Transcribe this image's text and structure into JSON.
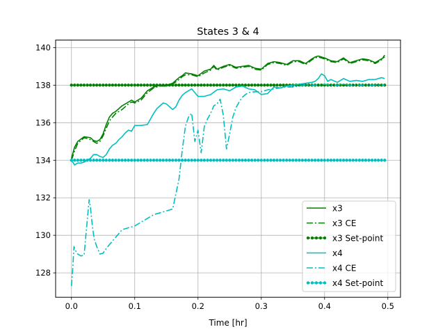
{
  "chart_data": {
    "type": "line",
    "title": "States 3 & 4",
    "xlabel": "Time [hr]",
    "ylabel": "",
    "xlim": [
      -0.025,
      0.52
    ],
    "ylim": [
      126.7,
      140.4
    ],
    "grid": true,
    "legend_position": "lower-right",
    "xticks": [
      0.0,
      0.1,
      0.2,
      0.3,
      0.4,
      0.5
    ],
    "xtick_labels": [
      "0.0",
      "0.1",
      "0.2",
      "0.3",
      "0.4",
      "0.5"
    ],
    "yticks": [
      128,
      130,
      132,
      134,
      136,
      138,
      140
    ],
    "ytick_labels": [
      "128",
      "130",
      "132",
      "134",
      "136",
      "138",
      "140"
    ],
    "series": [
      {
        "name": "x3",
        "color": "#008000",
        "style": "solid",
        "marker": "none",
        "x": [
          0.0,
          0.005,
          0.01,
          0.02,
          0.03,
          0.035,
          0.04,
          0.045,
          0.05,
          0.055,
          0.06,
          0.065,
          0.07,
          0.08,
          0.09,
          0.095,
          0.1,
          0.11,
          0.115,
          0.12,
          0.13,
          0.14,
          0.15,
          0.16,
          0.17,
          0.175,
          0.18,
          0.19,
          0.2,
          0.21,
          0.22,
          0.225,
          0.23,
          0.24,
          0.25,
          0.26,
          0.27,
          0.28,
          0.29,
          0.3,
          0.31,
          0.32,
          0.33,
          0.34,
          0.35,
          0.36,
          0.37,
          0.38,
          0.385,
          0.39,
          0.4,
          0.41,
          0.42,
          0.43,
          0.44,
          0.45,
          0.46,
          0.47,
          0.48,
          0.49,
          0.495
        ],
        "y": [
          134.1,
          134.7,
          135.0,
          135.25,
          135.2,
          135.05,
          135.0,
          135.1,
          135.4,
          135.9,
          136.3,
          136.5,
          136.6,
          136.9,
          137.1,
          137.2,
          137.1,
          137.3,
          137.5,
          137.7,
          137.9,
          138.0,
          138.0,
          138.1,
          138.4,
          138.5,
          138.65,
          138.6,
          138.5,
          138.75,
          138.85,
          139.05,
          138.85,
          139.0,
          139.1,
          138.95,
          139.0,
          139.05,
          138.9,
          138.85,
          139.15,
          139.25,
          139.2,
          139.1,
          139.3,
          139.3,
          139.15,
          139.4,
          139.5,
          139.55,
          139.45,
          139.3,
          139.25,
          139.45,
          139.2,
          139.3,
          139.4,
          139.35,
          139.2,
          139.4,
          139.5
        ]
      },
      {
        "name": "x3 CE",
        "color": "#008000",
        "style": "dashdot",
        "marker": "none",
        "x": [
          0.0,
          0.005,
          0.01,
          0.02,
          0.03,
          0.035,
          0.04,
          0.045,
          0.05,
          0.055,
          0.06,
          0.07,
          0.08,
          0.09,
          0.095,
          0.1,
          0.11,
          0.115,
          0.12,
          0.13,
          0.14,
          0.15,
          0.16,
          0.17,
          0.175,
          0.18,
          0.19,
          0.2,
          0.21,
          0.22,
          0.225,
          0.23,
          0.24,
          0.25,
          0.26,
          0.27,
          0.28,
          0.29,
          0.3,
          0.31,
          0.32,
          0.33,
          0.34,
          0.35,
          0.36,
          0.37,
          0.38,
          0.385,
          0.39,
          0.4,
          0.41,
          0.42,
          0.43,
          0.44,
          0.45,
          0.46,
          0.47,
          0.48,
          0.49,
          0.495
        ],
        "y": [
          134.0,
          134.5,
          134.9,
          135.2,
          135.1,
          135.0,
          134.9,
          135.0,
          135.3,
          135.7,
          136.1,
          136.5,
          136.7,
          137.0,
          137.1,
          137.05,
          137.2,
          137.4,
          137.6,
          137.85,
          137.95,
          137.95,
          138.05,
          138.3,
          138.45,
          138.55,
          138.55,
          138.45,
          138.65,
          138.8,
          139.0,
          138.8,
          138.95,
          139.05,
          138.9,
          138.95,
          139.0,
          138.85,
          138.8,
          139.1,
          139.2,
          139.15,
          139.05,
          139.25,
          139.25,
          139.1,
          139.35,
          139.45,
          139.5,
          139.4,
          139.25,
          139.2,
          139.4,
          139.15,
          139.25,
          139.35,
          139.3,
          139.15,
          139.35,
          139.6
        ]
      },
      {
        "name": "x3 Set-point",
        "color": "#008000",
        "style": "dashed",
        "marker": "dot",
        "x": [
          0.0,
          0.005,
          0.01,
          0.015,
          0.02,
          0.025,
          0.03,
          0.035,
          0.04,
          0.045,
          0.05,
          0.055,
          0.06,
          0.065,
          0.07,
          0.075,
          0.08,
          0.085,
          0.09,
          0.095,
          0.1,
          0.105,
          0.11,
          0.115,
          0.12,
          0.125,
          0.13,
          0.135,
          0.14,
          0.145,
          0.15,
          0.155,
          0.16,
          0.165,
          0.17,
          0.175,
          0.18,
          0.185,
          0.19,
          0.195,
          0.2,
          0.205,
          0.21,
          0.215,
          0.22,
          0.225,
          0.23,
          0.235,
          0.24,
          0.245,
          0.25,
          0.255,
          0.26,
          0.265,
          0.27,
          0.275,
          0.28,
          0.285,
          0.29,
          0.295,
          0.3,
          0.305,
          0.31,
          0.315,
          0.32,
          0.325,
          0.33,
          0.335,
          0.34,
          0.345,
          0.35,
          0.355,
          0.36,
          0.365,
          0.37,
          0.375,
          0.38,
          0.385,
          0.39,
          0.395,
          0.4,
          0.405,
          0.41,
          0.415,
          0.42,
          0.425,
          0.43,
          0.435,
          0.44,
          0.445,
          0.45,
          0.455,
          0.46,
          0.465,
          0.47,
          0.475,
          0.48,
          0.485,
          0.49,
          0.495
        ],
        "y": [
          138,
          138,
          138,
          138,
          138,
          138,
          138,
          138,
          138,
          138,
          138,
          138,
          138,
          138,
          138,
          138,
          138,
          138,
          138,
          138,
          138,
          138,
          138,
          138,
          138,
          138,
          138,
          138,
          138,
          138,
          138,
          138,
          138,
          138,
          138,
          138,
          138,
          138,
          138,
          138,
          138,
          138,
          138,
          138,
          138,
          138,
          138,
          138,
          138,
          138,
          138,
          138,
          138,
          138,
          138,
          138,
          138,
          138,
          138,
          138,
          138,
          138,
          138,
          138,
          138,
          138,
          138,
          138,
          138,
          138,
          138,
          138,
          138,
          138,
          138,
          138,
          138,
          138,
          138,
          138,
          138,
          138,
          138,
          138,
          138,
          138,
          138,
          138,
          138,
          138,
          138,
          138,
          138,
          138,
          138,
          138,
          138,
          138,
          138,
          138
        ]
      },
      {
        "name": "x4",
        "color": "#00bfbf",
        "style": "solid",
        "marker": "none",
        "x": [
          0.0,
          0.005,
          0.01,
          0.015,
          0.02,
          0.025,
          0.03,
          0.035,
          0.04,
          0.045,
          0.05,
          0.055,
          0.06,
          0.065,
          0.07,
          0.075,
          0.08,
          0.085,
          0.09,
          0.095,
          0.1,
          0.11,
          0.12,
          0.125,
          0.13,
          0.135,
          0.14,
          0.145,
          0.15,
          0.155,
          0.16,
          0.165,
          0.17,
          0.175,
          0.18,
          0.185,
          0.19,
          0.2,
          0.21,
          0.22,
          0.23,
          0.24,
          0.25,
          0.26,
          0.27,
          0.28,
          0.29,
          0.3,
          0.31,
          0.32,
          0.33,
          0.34,
          0.35,
          0.36,
          0.37,
          0.38,
          0.385,
          0.39,
          0.395,
          0.4,
          0.405,
          0.41,
          0.42,
          0.43,
          0.44,
          0.45,
          0.46,
          0.47,
          0.48,
          0.49,
          0.495
        ],
        "y": [
          134.0,
          133.75,
          133.85,
          133.85,
          133.9,
          134.0,
          134.1,
          134.3,
          134.3,
          134.2,
          134.15,
          134.3,
          134.6,
          134.8,
          134.9,
          135.1,
          135.25,
          135.45,
          135.6,
          135.55,
          135.85,
          135.85,
          135.9,
          136.2,
          136.5,
          136.75,
          136.9,
          137.05,
          137.0,
          136.85,
          136.7,
          136.85,
          137.2,
          137.45,
          137.6,
          137.7,
          137.8,
          137.4,
          137.4,
          137.5,
          137.75,
          137.8,
          137.7,
          137.9,
          137.95,
          137.8,
          137.75,
          137.5,
          137.55,
          137.9,
          137.85,
          137.95,
          138.0,
          138.05,
          138.1,
          138.15,
          138.2,
          138.35,
          138.6,
          138.5,
          138.2,
          138.3,
          138.15,
          138.35,
          138.2,
          138.25,
          138.2,
          138.3,
          138.3,
          138.4,
          138.35
        ]
      },
      {
        "name": "x4 CE",
        "color": "#00bfbf",
        "style": "dashdot",
        "marker": "none",
        "x": [
          0.0,
          0.002,
          0.004,
          0.006,
          0.01,
          0.015,
          0.02,
          0.025,
          0.028,
          0.03,
          0.033,
          0.036,
          0.04,
          0.045,
          0.05,
          0.055,
          0.06,
          0.07,
          0.08,
          0.09,
          0.1,
          0.11,
          0.12,
          0.13,
          0.14,
          0.15,
          0.16,
          0.17,
          0.175,
          0.18,
          0.185,
          0.19,
          0.195,
          0.2,
          0.205,
          0.21,
          0.215,
          0.22,
          0.225,
          0.23,
          0.235,
          0.24,
          0.245,
          0.25,
          0.255,
          0.26,
          0.265,
          0.27,
          0.275,
          0.28,
          0.29,
          0.3,
          0.31,
          0.32,
          0.33,
          0.34,
          0.35,
          0.36,
          0.37,
          0.38,
          0.39,
          0.4,
          0.41,
          0.42,
          0.43,
          0.44,
          0.45,
          0.46,
          0.47,
          0.48,
          0.49,
          0.495
        ],
        "y": [
          127.3,
          128.2,
          129.4,
          129.2,
          129.0,
          128.9,
          128.95,
          130.8,
          131.9,
          131.5,
          130.5,
          129.8,
          129.4,
          129.0,
          129.05,
          129.3,
          129.5,
          129.9,
          130.3,
          130.4,
          130.5,
          130.7,
          130.9,
          131.1,
          131.2,
          131.3,
          131.4,
          133.0,
          134.5,
          135.8,
          136.3,
          136.5,
          135.0,
          135.6,
          134.4,
          135.8,
          136.2,
          136.5,
          136.9,
          137.0,
          137.25,
          136.4,
          134.6,
          135.4,
          136.3,
          136.8,
          137.1,
          137.35,
          137.5,
          137.6,
          137.65,
          137.65,
          137.75,
          137.8,
          137.85,
          137.9,
          137.9,
          137.95,
          138.0,
          138.0,
          138.0,
          138.05,
          138.0,
          138.0,
          138.05,
          138.0,
          138.0,
          138.0,
          138.0,
          138.0,
          138.0,
          138.0
        ]
      },
      {
        "name": "x4 Set-point",
        "color": "#00bfbf",
        "style": "dashed",
        "marker": "dot",
        "x": [
          0.0,
          0.005,
          0.01,
          0.015,
          0.02,
          0.025,
          0.03,
          0.035,
          0.04,
          0.045,
          0.05,
          0.055,
          0.06,
          0.065,
          0.07,
          0.075,
          0.08,
          0.085,
          0.09,
          0.095,
          0.1,
          0.105,
          0.11,
          0.115,
          0.12,
          0.125,
          0.13,
          0.135,
          0.14,
          0.145,
          0.15,
          0.155,
          0.16,
          0.165,
          0.17,
          0.175,
          0.18,
          0.185,
          0.19,
          0.195,
          0.2,
          0.205,
          0.21,
          0.215,
          0.22,
          0.225,
          0.23,
          0.235,
          0.24,
          0.245,
          0.25,
          0.255,
          0.26,
          0.265,
          0.27,
          0.275,
          0.28,
          0.285,
          0.29,
          0.295,
          0.3,
          0.305,
          0.31,
          0.315,
          0.32,
          0.325,
          0.33,
          0.335,
          0.34,
          0.345,
          0.35,
          0.355,
          0.36,
          0.365,
          0.37,
          0.375,
          0.38,
          0.385,
          0.39,
          0.395,
          0.4,
          0.405,
          0.41,
          0.415,
          0.42,
          0.425,
          0.43,
          0.435,
          0.44,
          0.445,
          0.45,
          0.455,
          0.46,
          0.465,
          0.47,
          0.475,
          0.48,
          0.485,
          0.49,
          0.495
        ],
        "y": [
          134,
          134,
          134,
          134,
          134,
          134,
          134,
          134,
          134,
          134,
          134,
          134,
          134,
          134,
          134,
          134,
          134,
          134,
          134,
          134,
          134,
          134,
          134,
          134,
          134,
          134,
          134,
          134,
          134,
          134,
          134,
          134,
          134,
          134,
          134,
          134,
          134,
          134,
          134,
          134,
          134,
          134,
          134,
          134,
          134,
          134,
          134,
          134,
          134,
          134,
          134,
          134,
          134,
          134,
          134,
          134,
          134,
          134,
          134,
          134,
          134,
          134,
          134,
          134,
          134,
          134,
          134,
          134,
          134,
          134,
          134,
          134,
          134,
          134,
          134,
          134,
          134,
          134,
          134,
          134,
          134,
          134,
          134,
          134,
          134,
          134,
          134,
          134,
          134,
          134,
          134,
          134,
          134,
          134,
          134,
          134,
          134,
          134,
          134,
          134
        ]
      }
    ]
  }
}
